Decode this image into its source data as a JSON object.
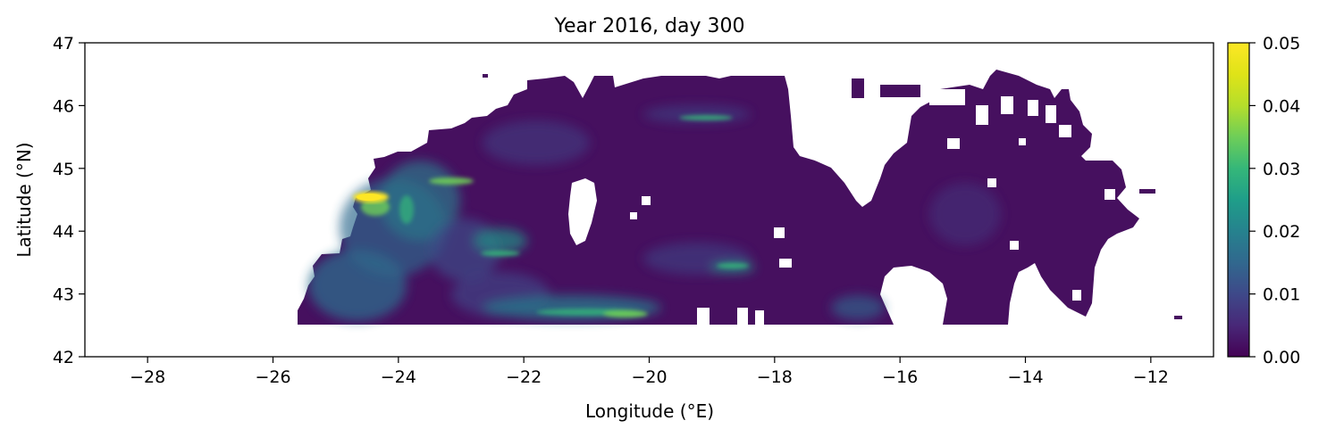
{
  "chart_data": {
    "type": "heatmap",
    "title": "Year 2016, day 300",
    "xlabel": "Longitude (°E)",
    "ylabel": "Latitude (°N)",
    "xlim": [
      -29,
      -11
    ],
    "ylim": [
      42,
      47
    ],
    "xticks": [
      -28,
      -26,
      -24,
      -22,
      -20,
      -18,
      -16,
      -14,
      -12
    ],
    "xtick_labels": [
      "−28",
      "−26",
      "−24",
      "−22",
      "−20",
      "−18",
      "−16",
      "−14",
      "−12"
    ],
    "yticks": [
      42,
      43,
      44,
      45,
      46,
      47
    ],
    "ytick_labels": [
      "42",
      "43",
      "44",
      "45",
      "46",
      "47"
    ],
    "colorbar": {
      "colormap": "viridis",
      "vmin": 0.0,
      "vmax": 0.05,
      "ticks": [
        0.0,
        0.01,
        0.02,
        0.03,
        0.04,
        0.05
      ],
      "tick_labels": [
        "0.00",
        "0.01",
        "0.02",
        "0.03",
        "0.04",
        "0.05"
      ]
    },
    "data_extent": {
      "lon": [
        -25.7,
        -11.5
      ],
      "lat": [
        42.5,
        46.5
      ]
    },
    "approx_regions": [
      {
        "lon": [
          -24.7,
          -24.2
        ],
        "lat": [
          44.5,
          44.65
        ],
        "value": 0.05
      },
      {
        "lon": [
          -23.5,
          -22.8
        ],
        "lat": [
          44.75,
          44.85
        ],
        "value": 0.03
      },
      {
        "lon": [
          -24.5,
          -22.5
        ],
        "lat": [
          43.8,
          45.2
        ],
        "value": 0.018
      },
      {
        "lon": [
          -25.5,
          -23.0
        ],
        "lat": [
          42.6,
          44.3
        ],
        "value": 0.014
      },
      {
        "lon": [
          -22.3,
          -19.8
        ],
        "lat": [
          42.6,
          42.85
        ],
        "value": 0.025
      },
      {
        "lon": [
          -22.8,
          -21.8
        ],
        "lat": [
          43.6,
          43.8
        ],
        "value": 0.022
      },
      {
        "lon": [
          -19.5,
          -18.5
        ],
        "lat": [
          45.75,
          45.85
        ],
        "value": 0.02
      },
      {
        "lon": [
          -19.5,
          -18.3
        ],
        "lat": [
          43.4,
          43.55
        ],
        "value": 0.018
      },
      {
        "lon": [
          -16.8,
          -16.2
        ],
        "lat": [
          42.6,
          42.9
        ],
        "value": 0.016
      },
      {
        "lon": [
          -19.0,
          -16.0
        ],
        "lat": [
          44.4,
          45.2
        ],
        "value": 0.008
      },
      {
        "lon": [
          -15.5,
          -13.0
        ],
        "lat": [
          43.0,
          45.8
        ],
        "value": 0.006
      }
    ]
  }
}
